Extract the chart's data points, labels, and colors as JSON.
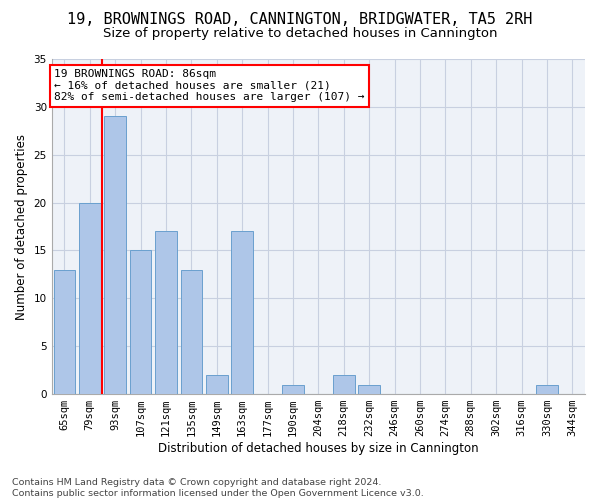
{
  "title": "19, BROWNINGS ROAD, CANNINGTON, BRIDGWATER, TA5 2RH",
  "subtitle": "Size of property relative to detached houses in Cannington",
  "xlabel": "Distribution of detached houses by size in Cannington",
  "ylabel": "Number of detached properties",
  "categories": [
    "65sqm",
    "79sqm",
    "93sqm",
    "107sqm",
    "121sqm",
    "135sqm",
    "149sqm",
    "163sqm",
    "177sqm",
    "190sqm",
    "204sqm",
    "218sqm",
    "232sqm",
    "246sqm",
    "260sqm",
    "274sqm",
    "288sqm",
    "302sqm",
    "316sqm",
    "330sqm",
    "344sqm"
  ],
  "values": [
    13,
    20,
    29,
    15,
    17,
    13,
    2,
    17,
    0,
    1,
    0,
    2,
    1,
    0,
    0,
    0,
    0,
    0,
    0,
    1,
    0
  ],
  "bar_color": "#aec6e8",
  "bar_edge_color": "#6aa0cf",
  "red_line_x": 1.5,
  "annotation_text": "19 BROWNINGS ROAD: 86sqm\n← 16% of detached houses are smaller (21)\n82% of semi-detached houses are larger (107) →",
  "annotation_box_color": "white",
  "annotation_box_edge_color": "red",
  "ylim": [
    0,
    35
  ],
  "yticks": [
    0,
    5,
    10,
    15,
    20,
    25,
    30,
    35
  ],
  "footnote": "Contains HM Land Registry data © Crown copyright and database right 2024.\nContains public sector information licensed under the Open Government Licence v3.0.",
  "bg_color": "#eef2f8",
  "grid_color": "#c8d0e0",
  "title_fontsize": 11,
  "subtitle_fontsize": 9.5,
  "axis_label_fontsize": 8.5,
  "tick_fontsize": 7.5,
  "annotation_fontsize": 8,
  "footnote_fontsize": 6.8
}
